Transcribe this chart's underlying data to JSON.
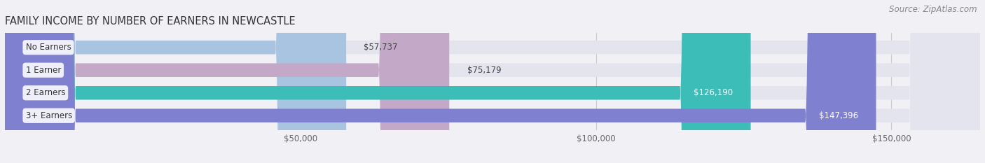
{
  "title": "FAMILY INCOME BY NUMBER OF EARNERS IN NEWCASTLE",
  "source": "Source: ZipAtlas.com",
  "categories": [
    "No Earners",
    "1 Earner",
    "2 Earners",
    "3+ Earners"
  ],
  "values": [
    57737,
    75179,
    126190,
    147396
  ],
  "bar_colors": [
    "#a8c4e0",
    "#c4a8c8",
    "#3dbdb8",
    "#8080d0"
  ],
  "label_colors": [
    "#555555",
    "#555555",
    "#ffffff",
    "#ffffff"
  ],
  "xlim": [
    0,
    165000
  ],
  "xticks": [
    50000,
    100000,
    150000
  ],
  "xtick_labels": [
    "$50,000",
    "$100,000",
    "$150,000"
  ],
  "background_color": "#f0f0f5",
  "bar_bg_color": "#e4e4ee",
  "title_fontsize": 10.5,
  "source_fontsize": 8.5,
  "label_fontsize": 8.5,
  "tick_fontsize": 8.5,
  "bar_height": 0.6,
  "rounding_size": 12000
}
